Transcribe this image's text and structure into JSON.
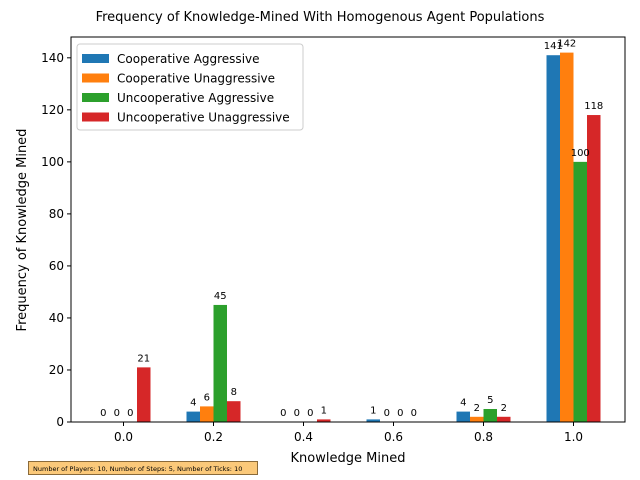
{
  "chart_data": {
    "type": "bar",
    "title": "Frequency of Knowledge-Mined With Homogenous Agent Populations",
    "xlabel": "Knowledge Mined",
    "ylabel": "Frequency of Knowledge Mined",
    "categories": [
      "0.0",
      "0.2",
      "0.4",
      "0.6",
      "0.8",
      "1.0"
    ],
    "ylim": [
      0,
      148
    ],
    "yticks": [
      "0",
      "20",
      "40",
      "60",
      "80",
      "100",
      "120",
      "140"
    ],
    "legend_position": "top-left",
    "grid": false,
    "series": [
      {
        "name": "Cooperative Aggressive",
        "color": "#1f77b4",
        "values": [
          0,
          4,
          0,
          1,
          4,
          141
        ]
      },
      {
        "name": "Cooperative Unaggressive",
        "color": "#ff7f0e",
        "values": [
          0,
          6,
          0,
          0,
          2,
          142
        ]
      },
      {
        "name": "Uncooperative Aggressive",
        "color": "#2ca02c",
        "values": [
          0,
          45,
          0,
          0,
          5,
          100
        ]
      },
      {
        "name": "Uncooperative Unaggressive",
        "color": "#d62728",
        "values": [
          21,
          8,
          1,
          0,
          2,
          118
        ]
      }
    ],
    "annotation": "Number of Players: 10, Number of Steps: 5, Number of Ticks: 10"
  }
}
